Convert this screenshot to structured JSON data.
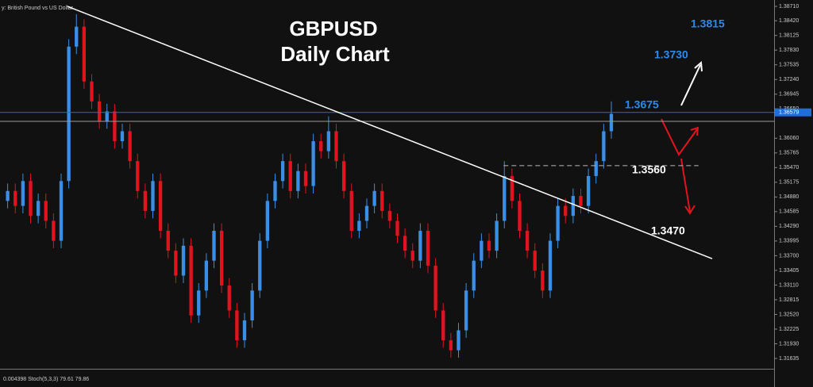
{
  "chart_data": {
    "type": "candlestick",
    "title": "GBPUSD",
    "subtitle": "Daily Chart",
    "symbol_label": "y: British Pound vs US Dollar",
    "indicator_label": "0.004398 Stoch(5,3,3) 79.61 79.86",
    "up_color": "#3a8ee6",
    "down_color": "#e0141e",
    "xlim": [
      -1,
      100.3
    ],
    "ylim": [
      1.31476,
      1.38837
    ],
    "yticks": [
      {
        "value": 1.3871,
        "label": "1.38710"
      },
      {
        "value": 1.3842,
        "label": "1.38420"
      },
      1.38125,
      {
        "value": 1.3783,
        "label": "1.37830"
      },
      1.37535,
      {
        "value": 1.3724,
        "label": "1.37240"
      },
      1.36945,
      {
        "value": 1.3665,
        "label": "1.36650"
      },
      {
        "value": 1.3606,
        "label": "1.36060"
      },
      1.35765,
      {
        "value": 1.3547,
        "label": "1.35470"
      },
      1.35175,
      {
        "value": 1.3488,
        "label": "1.34880"
      },
      1.34585,
      {
        "value": 1.3429,
        "label": "1.34290"
      },
      1.33995,
      {
        "value": 1.337,
        "label": "1.33700"
      },
      1.33405,
      {
        "value": 1.3311,
        "label": "1.33110"
      },
      1.32815,
      {
        "value": 1.3252,
        "label": "1.32520"
      },
      1.32225,
      {
        "value": 1.3193,
        "label": "1.31930"
      },
      1.31635
    ],
    "open": [
      1.348,
      1.35,
      1.347,
      1.352,
      1.345,
      1.348,
      1.344,
      1.34,
      1.352,
      1.379,
      1.383,
      1.372,
      1.368,
      1.364,
      1.366,
      1.36,
      1.362,
      1.356,
      1.35,
      1.346,
      1.352,
      1.342,
      1.338,
      1.333,
      1.339,
      1.325,
      1.33,
      1.336,
      1.342,
      1.331,
      1.326,
      1.32,
      1.324,
      1.33,
      1.34,
      1.348,
      1.352,
      1.356,
      1.35,
      1.354,
      1.351,
      1.36,
      1.358,
      1.362,
      1.356,
      1.35,
      1.342,
      1.344,
      1.347,
      1.35,
      1.346,
      1.344,
      1.341,
      1.338,
      1.336,
      1.342,
      1.335,
      1.326,
      1.32,
      1.318,
      1.322,
      1.33,
      1.336,
      1.34,
      1.338,
      1.344,
      1.353,
      1.348,
      1.342,
      1.338,
      1.334,
      1.33,
      1.34,
      1.347,
      1.345,
      1.349,
      1.347,
      1.353,
      1.356,
      1.362
    ],
    "high": [
      1.3515,
      1.3515,
      1.3535,
      1.3535,
      1.3495,
      1.3495,
      1.3455,
      1.3535,
      1.3805,
      1.3855,
      1.3845,
      1.3735,
      1.3695,
      1.3675,
      1.3675,
      1.3635,
      1.3635,
      1.3575,
      1.3515,
      1.3535,
      1.3535,
      1.3435,
      1.3395,
      1.3405,
      1.3405,
      1.3315,
      1.3375,
      1.3435,
      1.3435,
      1.3325,
      1.3275,
      1.3255,
      1.3315,
      1.3415,
      1.3495,
      1.3535,
      1.3575,
      1.3575,
      1.3555,
      1.3555,
      1.3615,
      1.3615,
      1.365,
      1.3635,
      1.3575,
      1.3515,
      1.3455,
      1.3485,
      1.3515,
      1.3515,
      1.3475,
      1.3455,
      1.3425,
      1.3395,
      1.3435,
      1.3435,
      1.3365,
      1.3275,
      1.3215,
      1.3235,
      1.3315,
      1.3375,
      1.3415,
      1.3415,
      1.3455,
      1.356,
      1.3545,
      1.3495,
      1.3435,
      1.3395,
      1.3355,
      1.3415,
      1.3485,
      1.3485,
      1.3505,
      1.3505,
      1.3545,
      1.3575,
      1.3635,
      1.368
    ],
    "low": [
      1.3465,
      1.3455,
      1.3455,
      1.3435,
      1.3435,
      1.3425,
      1.3385,
      1.3385,
      1.3505,
      1.3775,
      1.3705,
      1.3665,
      1.3625,
      1.3625,
      1.3585,
      1.3585,
      1.3545,
      1.3485,
      1.3445,
      1.3445,
      1.3405,
      1.3365,
      1.3315,
      1.3315,
      1.3235,
      1.3235,
      1.3285,
      1.3345,
      1.3295,
      1.3245,
      1.3185,
      1.3185,
      1.3225,
      1.3285,
      1.3385,
      1.3465,
      1.3505,
      1.3485,
      1.3485,
      1.3495,
      1.3495,
      1.3565,
      1.3565,
      1.3545,
      1.3485,
      1.3405,
      1.3405,
      1.3425,
      1.3455,
      1.3445,
      1.3425,
      1.3395,
      1.3365,
      1.3345,
      1.3345,
      1.3335,
      1.3245,
      1.3185,
      1.3165,
      1.3165,
      1.3205,
      1.3285,
      1.3345,
      1.3365,
      1.3365,
      1.3425,
      1.3465,
      1.3405,
      1.3365,
      1.3325,
      1.3285,
      1.3285,
      1.3385,
      1.3435,
      1.3435,
      1.3455,
      1.3455,
      1.3515,
      1.3545,
      1.3605
    ],
    "close": [
      1.35,
      1.347,
      1.352,
      1.345,
      1.348,
      1.344,
      1.34,
      1.352,
      1.379,
      1.383,
      1.372,
      1.368,
      1.364,
      1.366,
      1.36,
      1.362,
      1.356,
      1.35,
      1.346,
      1.352,
      1.342,
      1.338,
      1.333,
      1.339,
      1.325,
      1.33,
      1.336,
      1.342,
      1.331,
      1.326,
      1.32,
      1.324,
      1.33,
      1.34,
      1.348,
      1.352,
      1.356,
      1.35,
      1.354,
      1.351,
      1.36,
      1.358,
      1.362,
      1.356,
      1.35,
      1.342,
      1.344,
      1.347,
      1.35,
      1.346,
      1.344,
      1.341,
      1.338,
      1.336,
      1.342,
      1.335,
      1.326,
      1.32,
      1.318,
      1.322,
      1.33,
      1.336,
      1.34,
      1.338,
      1.344,
      1.353,
      1.348,
      1.342,
      1.338,
      1.334,
      1.33,
      1.34,
      1.347,
      1.345,
      1.349,
      1.347,
      1.353,
      1.356,
      1.362,
      1.3655
    ],
    "hlines": [
      {
        "value": 1.36579,
        "label": "1.36579",
        "color": "#1e6fd9"
      },
      {
        "value": 1.364,
        "color": "#9a9a9a"
      }
    ],
    "trendline": {
      "x": [
        7.8,
        92.2
      ],
      "y": [
        1.3871,
        1.3364
      ],
      "color": "#ffffff"
    },
    "dashed_level": {
      "x": [
        64.9,
        90.4
      ],
      "y": 1.3551,
      "color": "#bbbbbb"
    },
    "annotations": [
      {
        "text": "1.3815",
        "color": "#2a8cf0"
      },
      {
        "text": "1.3730",
        "color": "#2a8cf0"
      },
      {
        "text": "1.3675",
        "color": "#2a8cf0"
      },
      {
        "text": "1.3560",
        "color": "#ffffff"
      },
      {
        "text": "1.3470",
        "color": "#ffffff"
      }
    ]
  }
}
